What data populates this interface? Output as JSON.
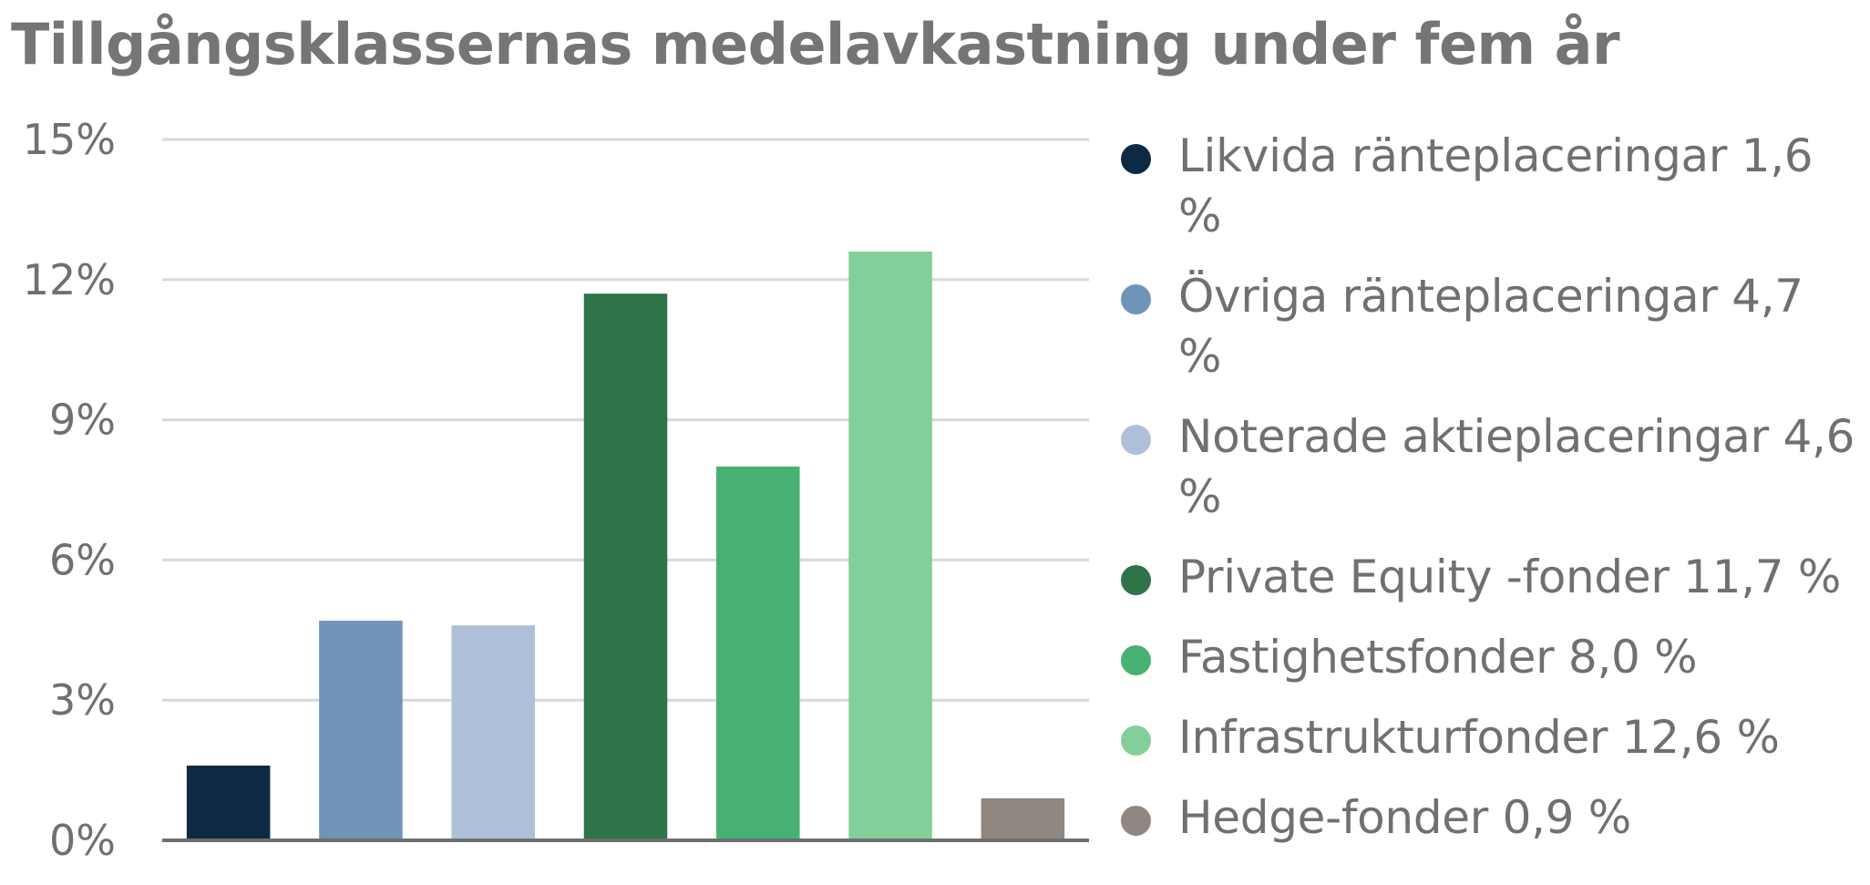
{
  "chart_data": {
    "type": "bar",
    "title": "Tillgångsklassernas medelavkastning under fem år",
    "xlabel": "",
    "ylabel": "",
    "ylim": [
      0,
      15
    ],
    "yticks": [
      0,
      3,
      6,
      9,
      12,
      15
    ],
    "ytick_labels": [
      "0%",
      "3%",
      "6%",
      "9%",
      "12%",
      "15%"
    ],
    "grid": true,
    "legend_position": "right",
    "categories": [
      "Likvida ränteplaceringar",
      "Övriga ränteplaceringar",
      "Noterade aktieplaceringar",
      "Private Equity -fonder",
      "Fastighetsfonder",
      "Infrastrukturfonder",
      "Hedge-fonder"
    ],
    "values": [
      1.6,
      4.7,
      4.6,
      11.7,
      8.0,
      12.6,
      0.9
    ],
    "colors": [
      "#0e2a43",
      "#7193b7",
      "#aec0d7",
      "#2f7348",
      "#46b172",
      "#83cf9a",
      "#8f8780"
    ],
    "legend": [
      "Likvida ränteplaceringar 1,6 %",
      "Övriga ränteplaceringar 4,7 %",
      "Noterade aktieplaceringar 4,6 %",
      "Private Equity -fonder 11,7 %",
      "Fastighetsfonder 8,0 %",
      "Infrastrukturfonder 12,6 %",
      "Hedge-fonder 0,9 %"
    ]
  }
}
